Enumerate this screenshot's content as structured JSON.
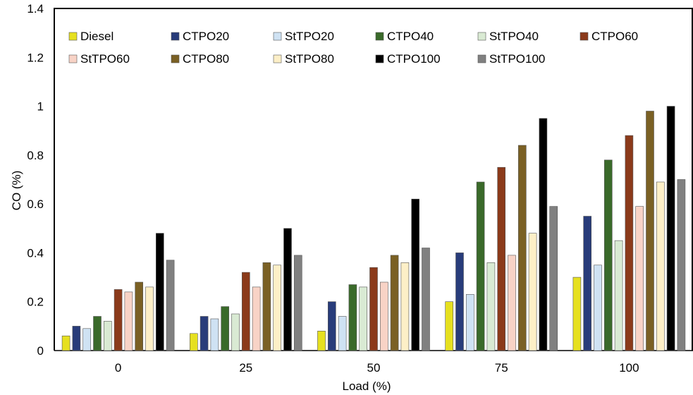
{
  "chart_data": {
    "type": "bar",
    "title": "",
    "xlabel": "Load (%)",
    "ylabel": "CO (%)",
    "ylim": [
      0,
      1.4
    ],
    "yticks": [
      "0",
      "0.2",
      "0.4",
      "0.6",
      "0.8",
      "1",
      "1.2",
      "1.4"
    ],
    "categories": [
      "0",
      "25",
      "50",
      "75",
      "100"
    ],
    "grid": false,
    "legend_position": "top",
    "series": [
      {
        "name": "Diesel",
        "color": "#e6e020",
        "values": [
          0.06,
          0.07,
          0.08,
          0.2,
          0.3
        ]
      },
      {
        "name": "CTPO20",
        "color": "#283c7a",
        "values": [
          0.1,
          0.14,
          0.2,
          0.4,
          0.55
        ]
      },
      {
        "name": "StTPO20",
        "color": "#cfe2f3",
        "values": [
          0.09,
          0.13,
          0.14,
          0.23,
          0.35
        ]
      },
      {
        "name": "CTPO40",
        "color": "#3a6a2a",
        "values": [
          0.14,
          0.18,
          0.27,
          0.69,
          0.78
        ]
      },
      {
        "name": "StTPO40",
        "color": "#d9ead3",
        "values": [
          0.12,
          0.15,
          0.26,
          0.36,
          0.45
        ]
      },
      {
        "name": "CTPO60",
        "color": "#8b3a1a",
        "values": [
          0.25,
          0.32,
          0.34,
          0.75,
          0.88
        ]
      },
      {
        "name": "StTPO60",
        "color": "#f8d3c6",
        "values": [
          0.24,
          0.26,
          0.28,
          0.39,
          0.59
        ]
      },
      {
        "name": "CTPO80",
        "color": "#7a6024",
        "values": [
          0.28,
          0.36,
          0.39,
          0.84,
          0.98
        ]
      },
      {
        "name": "StTPO80",
        "color": "#fdefc7",
        "values": [
          0.26,
          0.35,
          0.36,
          0.48,
          0.69
        ]
      },
      {
        "name": "CTPO100",
        "color": "#000000",
        "values": [
          0.48,
          0.5,
          0.62,
          0.95,
          1.0
        ]
      },
      {
        "name": "StTPO100",
        "color": "#808080",
        "values": [
          0.37,
          0.39,
          0.42,
          0.59,
          0.7
        ]
      }
    ]
  }
}
